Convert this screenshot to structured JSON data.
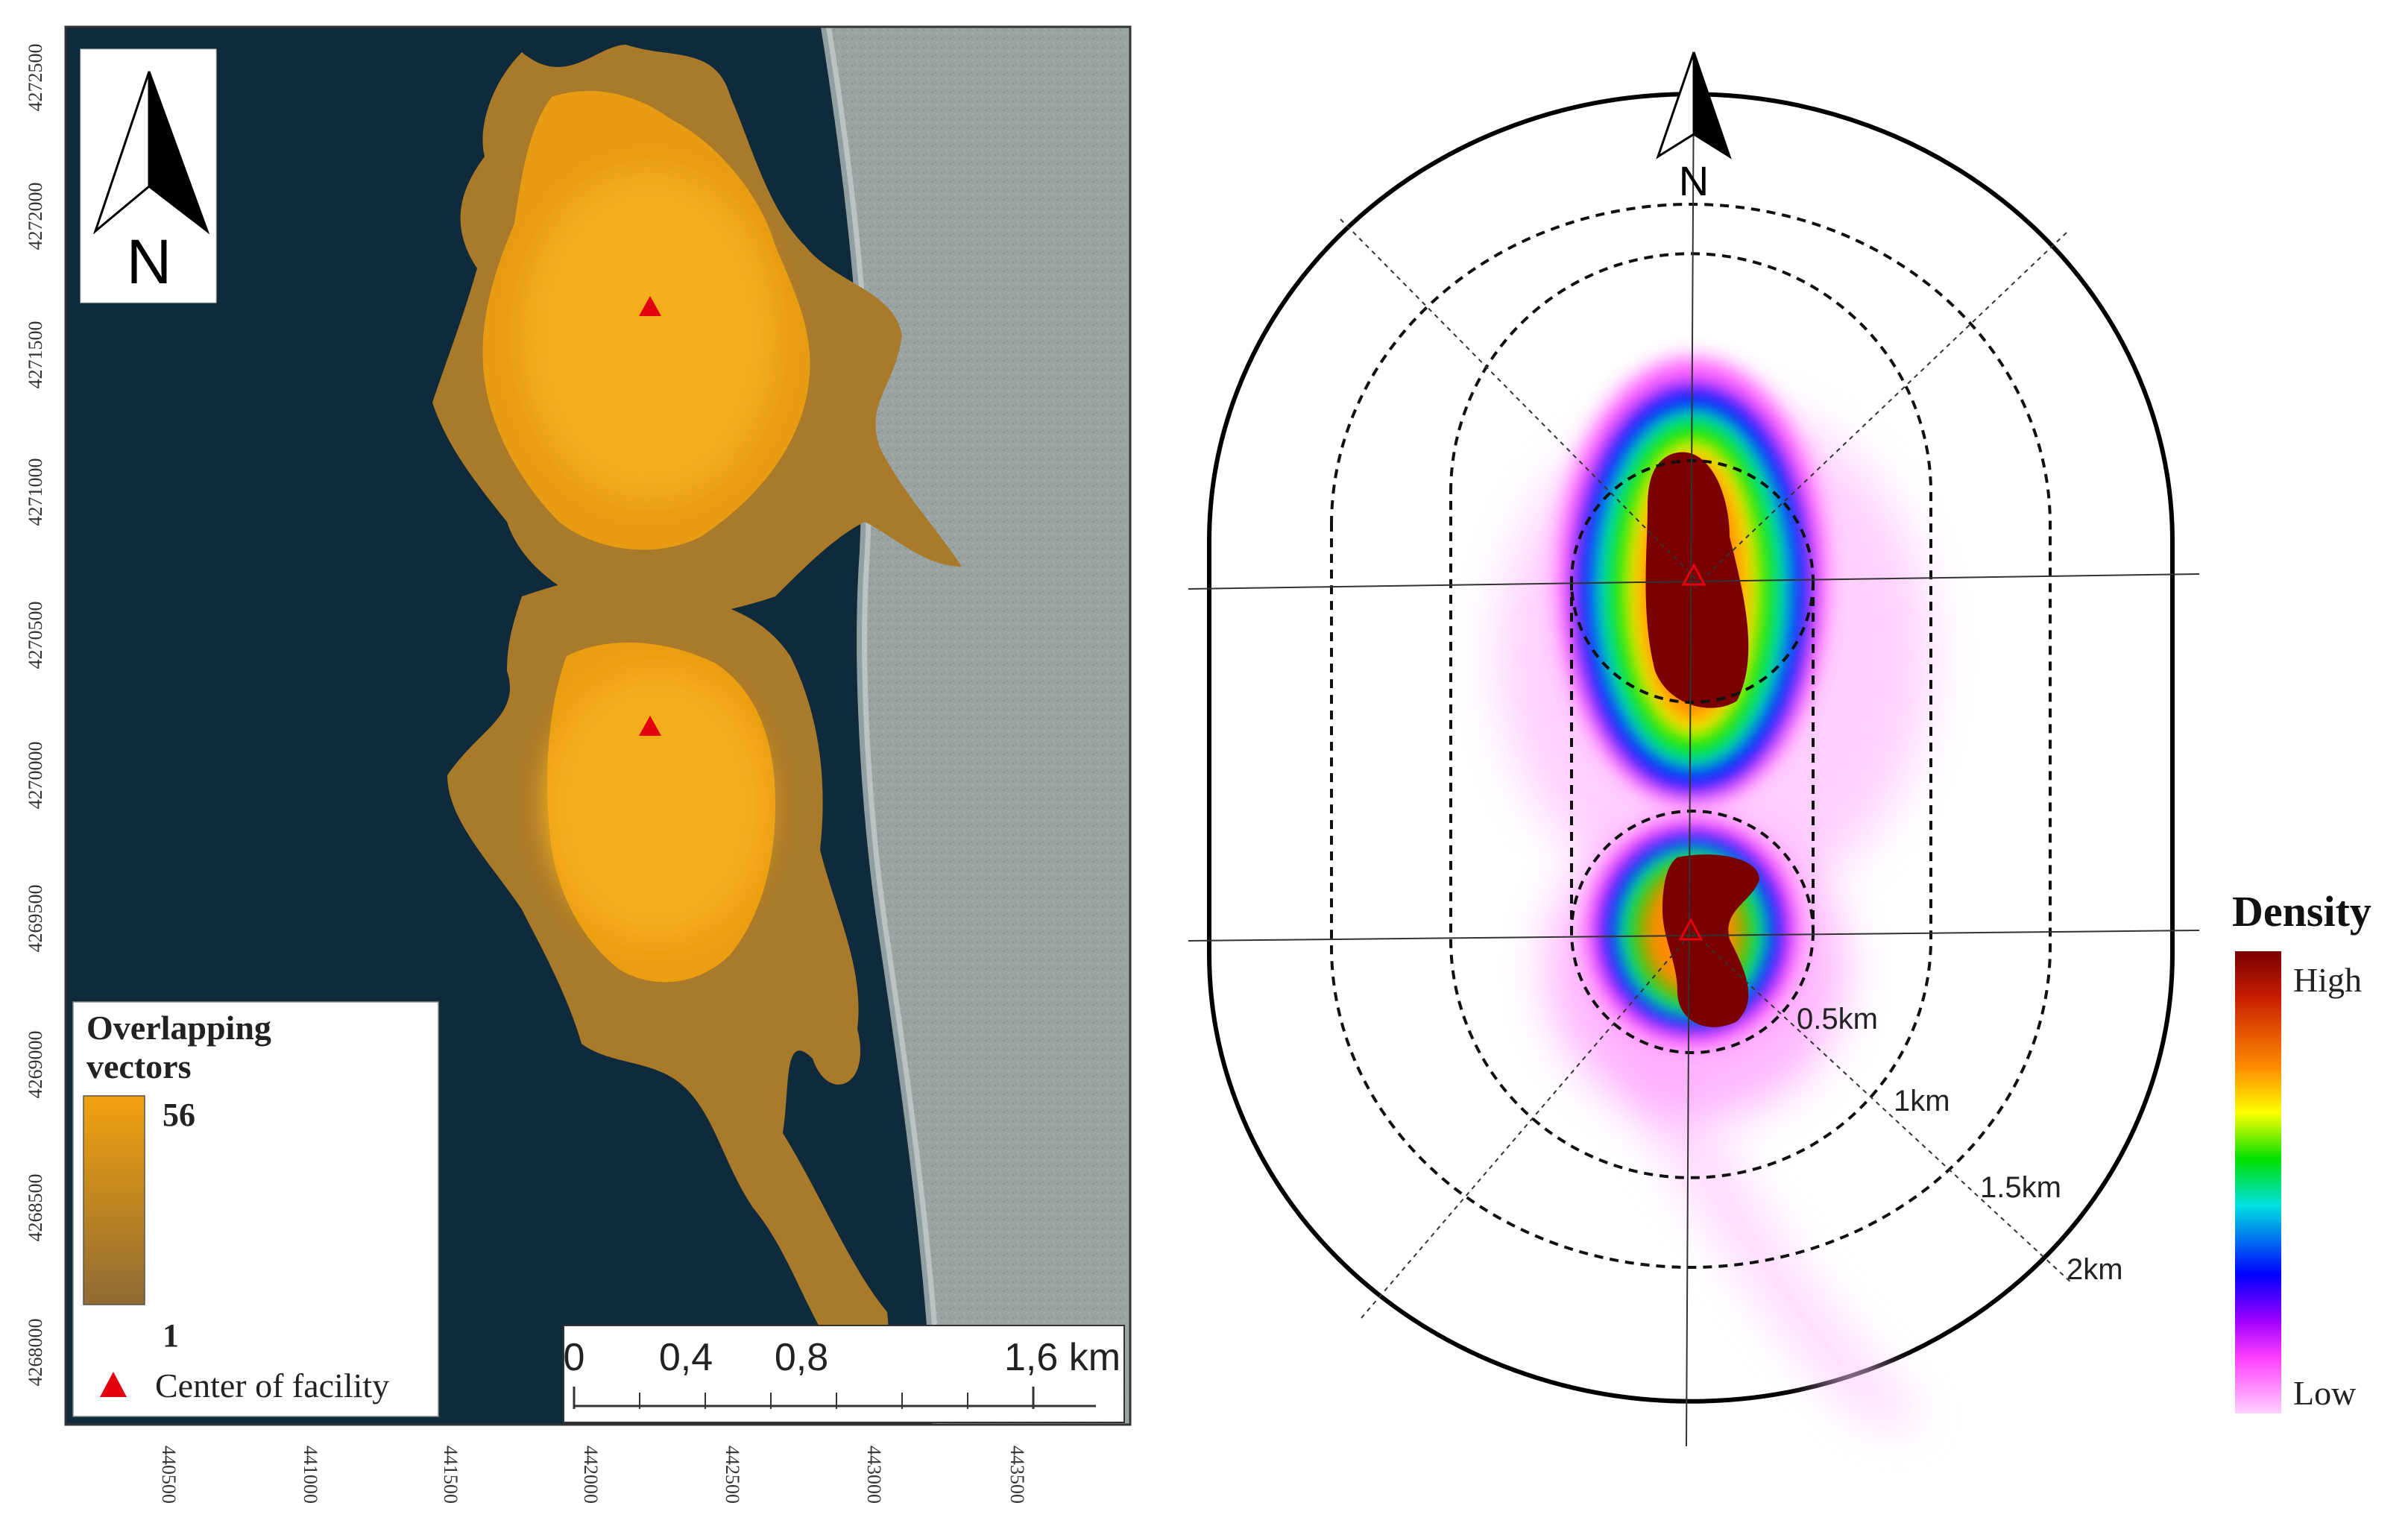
{
  "left_map": {
    "y_ticks": [
      "4272500",
      "4272000",
      "4271500",
      "4271000",
      "4270500",
      "4270000",
      "4269500",
      "4269000",
      "4268500",
      "4268000"
    ],
    "x_ticks": [
      "440500",
      "441000",
      "441500",
      "442000",
      "442500",
      "443000",
      "443500"
    ],
    "north_label": "N",
    "legend": {
      "title_line1": "Overlapping",
      "title_line2": "vectors",
      "max_label": "56",
      "min_label": "1",
      "marker_label": "Center of facility",
      "ramp_colors": [
        "#f2a20f",
        "#8f6a33"
      ]
    },
    "scale_bar": {
      "labels": [
        "0",
        "0,4",
        "0,8",
        "1,6 km"
      ]
    },
    "colors": {
      "sea": "#0f2a3a",
      "land": "#9aa4a2",
      "plume": "#f2a20f",
      "marker": "#e3000f"
    }
  },
  "right_map": {
    "north_label": "N",
    "rings": [
      "0.5km",
      "1km",
      "1.5km",
      "2km"
    ],
    "legend": {
      "title": "Density",
      "high_label": "High",
      "low_label": "Low",
      "ramp_colors": [
        "#7a0000",
        "#c81e00",
        "#ff8a00",
        "#ffff00",
        "#00e000",
        "#00e0e0",
        "#0000ff",
        "#a000ff",
        "#ff40ff",
        "#ffd0ff"
      ]
    }
  }
}
